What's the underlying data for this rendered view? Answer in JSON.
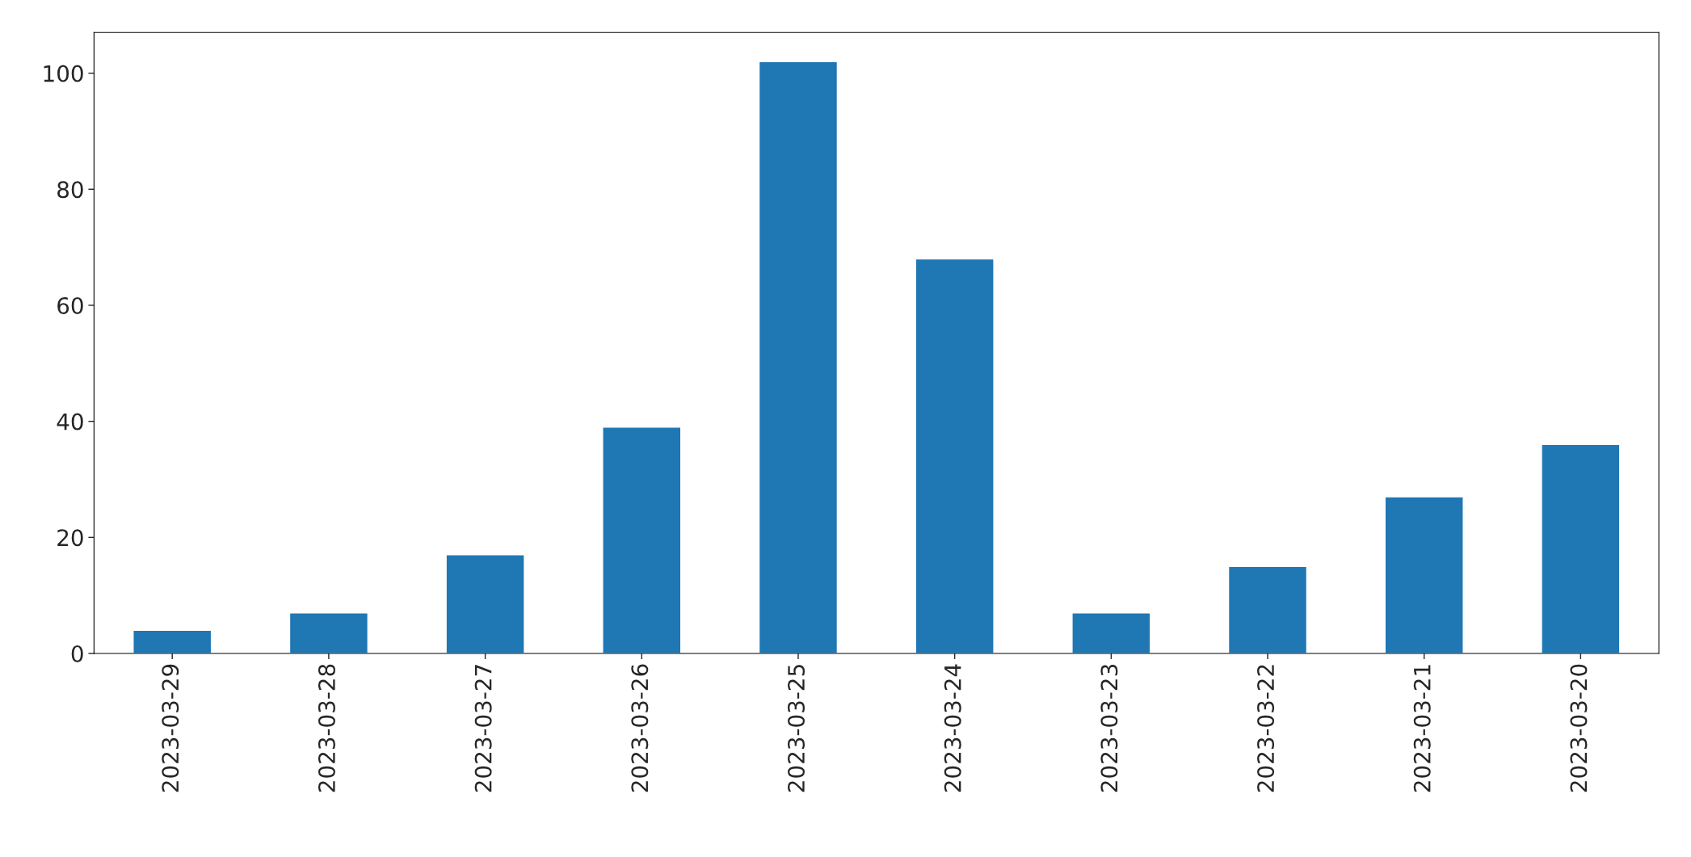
{
  "chart_data": {
    "type": "bar",
    "categories": [
      "2023-03-29",
      "2023-03-28",
      "2023-03-27",
      "2023-03-26",
      "2023-03-25",
      "2023-03-24",
      "2023-03-23",
      "2023-03-22",
      "2023-03-21",
      "2023-03-20"
    ],
    "values": [
      4,
      7,
      17,
      39,
      102,
      68,
      7,
      15,
      27,
      36
    ],
    "color": "#1f77b4",
    "ylim": [
      0,
      107
    ],
    "yticks": [
      0,
      20,
      40,
      60,
      80,
      100
    ],
    "grid": false,
    "legend": false
  }
}
